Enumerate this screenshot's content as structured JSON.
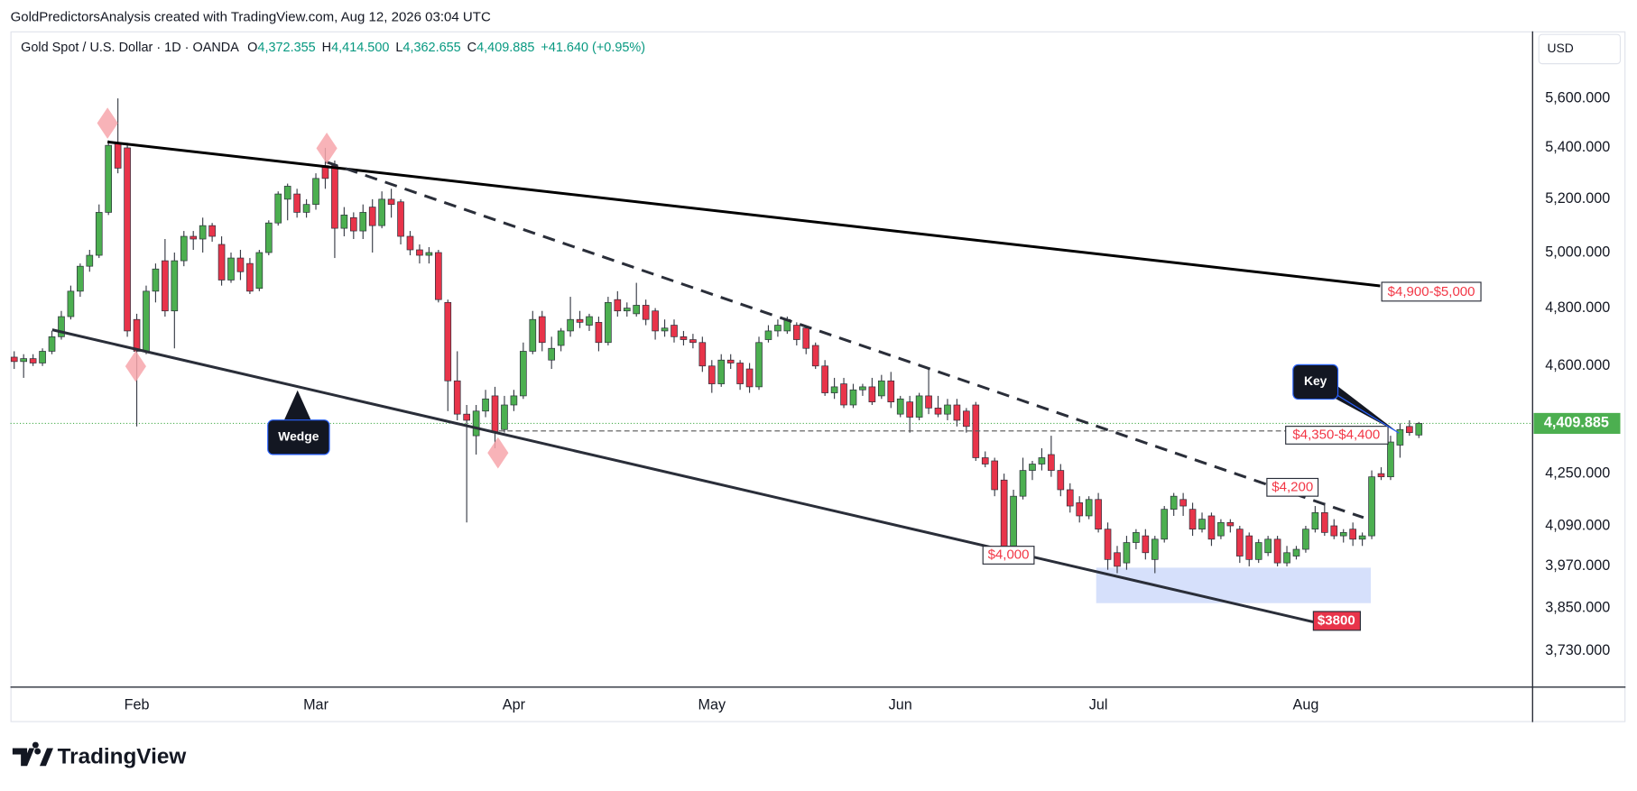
{
  "caption": "GoldPredictorsAnalysis created with TradingView.com, Aug 12, 2026 03:04 UTC",
  "brand": "TradingView",
  "chart_data": {
    "type": "candlestick",
    "title": "Gold Spot / U.S. Dollar · 1D · OANDA",
    "legend_values": [
      {
        "key": "O",
        "text": "4,372.355"
      },
      {
        "key": "H",
        "text": "4,414.500"
      },
      {
        "key": "L",
        "text": "4,362.655"
      },
      {
        "key": "C",
        "text": "4,409.885"
      }
    ],
    "change": "+41.640 (+0.95%)",
    "currency": "USD",
    "log_scale": true,
    "grid": false,
    "up_color": "#4caf50",
    "down_color": "#e8344a",
    "wick_color": "#3a3e48",
    "ylim": [
      3634,
      5883
    ],
    "yticks": [
      {
        "value": 5600,
        "label": "5,600.000"
      },
      {
        "value": 5400,
        "label": "5,400.000"
      },
      {
        "value": 5200,
        "label": "5,200.000"
      },
      {
        "value": 5000,
        "label": "5,000.000"
      },
      {
        "value": 4800,
        "label": "4,800.000"
      },
      {
        "value": 4600,
        "label": "4,600.000"
      },
      {
        "value": 4250,
        "label": "4,250.000"
      },
      {
        "value": 4090,
        "label": "4,090.000"
      },
      {
        "value": 3970,
        "label": "3,970.000"
      },
      {
        "value": 3850,
        "label": "3,850.000"
      },
      {
        "value": 3730,
        "label": "3,730.000"
      }
    ],
    "last_price": {
      "value": 4409.885,
      "label": "4,409.885",
      "color": "#4caf50"
    },
    "annotations": [
      "$4,900-$5,000",
      "$4,350-$4,400",
      "$4,200",
      "$4,000",
      "$3800",
      "Wedge",
      "Key"
    ],
    "categories": [
      null,
      null,
      null,
      null,
      null,
      null,
      null,
      null,
      null,
      null,
      null,
      null,
      null,
      "Feb",
      null,
      null,
      null,
      null,
      null,
      null,
      null,
      null,
      null,
      null,
      null,
      null,
      null,
      null,
      null,
      null,
      null,
      null,
      "Mar",
      null,
      null,
      null,
      null,
      null,
      null,
      null,
      null,
      null,
      null,
      null,
      null,
      null,
      null,
      null,
      null,
      null,
      null,
      null,
      null,
      "Apr",
      null,
      null,
      null,
      null,
      null,
      null,
      null,
      null,
      null,
      null,
      null,
      null,
      null,
      null,
      null,
      null,
      null,
      null,
      null,
      null,
      "May",
      null,
      null,
      null,
      null,
      null,
      null,
      null,
      null,
      null,
      null,
      null,
      null,
      null,
      null,
      null,
      null,
      null,
      null,
      null,
      "Jun",
      null,
      null,
      null,
      null,
      null,
      null,
      null,
      null,
      null,
      null,
      null,
      null,
      null,
      null,
      null,
      null,
      null,
      null,
      null,
      null,
      "Jul",
      null,
      null,
      null,
      null,
      null,
      null,
      null,
      null,
      null,
      null,
      null,
      null,
      null,
      null,
      null,
      null,
      null,
      null,
      null,
      null,
      null,
      "Aug",
      null,
      null,
      null,
      null,
      null,
      null
    ],
    "ohlc": [
      [
        4630,
        4650,
        4590,
        4615
      ],
      [
        4615,
        4640,
        4560,
        4625
      ],
      [
        4625,
        4640,
        4600,
        4610
      ],
      [
        4610,
        4660,
        4600,
        4650
      ],
      [
        4650,
        4720,
        4640,
        4700
      ],
      [
        4700,
        4790,
        4690,
        4770
      ],
      [
        4770,
        4880,
        4760,
        4860
      ],
      [
        4860,
        4960,
        4840,
        4950
      ],
      [
        4950,
        5010,
        4930,
        4990
      ],
      [
        4990,
        5180,
        4980,
        5150
      ],
      [
        5150,
        5430,
        5140,
        5410
      ],
      [
        5420,
        5600,
        5300,
        5320
      ],
      [
        5400,
        5420,
        4700,
        4720
      ],
      [
        4760,
        4780,
        4400,
        4650
      ],
      [
        4650,
        4880,
        4640,
        4860
      ],
      [
        4860,
        4960,
        4820,
        4940
      ],
      [
        4970,
        5050,
        4770,
        4790
      ],
      [
        4790,
        5000,
        4660,
        4970
      ],
      [
        4970,
        5080,
        4950,
        5060
      ],
      [
        5060,
        5080,
        5010,
        5050
      ],
      [
        5050,
        5130,
        5000,
        5100
      ],
      [
        5100,
        5110,
        5040,
        5060
      ],
      [
        5030,
        5060,
        4880,
        4900
      ],
      [
        4900,
        5000,
        4890,
        4980
      ],
      [
        4980,
        5010,
        4900,
        4930
      ],
      [
        4960,
        4980,
        4850,
        4860
      ],
      [
        4870,
        5010,
        4860,
        5000
      ],
      [
        5000,
        5120,
        4990,
        5110
      ],
      [
        5110,
        5230,
        5100,
        5220
      ],
      [
        5200,
        5260,
        5120,
        5250
      ],
      [
        5220,
        5240,
        5130,
        5150
      ],
      [
        5150,
        5200,
        5130,
        5180
      ],
      [
        5180,
        5300,
        5160,
        5280
      ],
      [
        5330,
        5400,
        5240,
        5280
      ],
      [
        5330,
        5350,
        4980,
        5090
      ],
      [
        5090,
        5170,
        5060,
        5140
      ],
      [
        5130,
        5150,
        5050,
        5080
      ],
      [
        5080,
        5180,
        5050,
        5150
      ],
      [
        5170,
        5200,
        5000,
        5100
      ],
      [
        5100,
        5230,
        5090,
        5200
      ],
      [
        5200,
        5240,
        5130,
        5180
      ],
      [
        5190,
        5200,
        5030,
        5060
      ],
      [
        5060,
        5080,
        4990,
        5010
      ],
      [
        5010,
        5030,
        4960,
        4990
      ],
      [
        4990,
        5020,
        4960,
        5000
      ],
      [
        5000,
        5010,
        4820,
        4830
      ],
      [
        4820,
        4830,
        4450,
        4550
      ],
      [
        4550,
        4650,
        4420,
        4440
      ],
      [
        4440,
        4470,
        4100,
        4420
      ],
      [
        4370,
        4470,
        4310,
        4450
      ],
      [
        4450,
        4520,
        4430,
        4490
      ],
      [
        4500,
        4530,
        4330,
        4380
      ],
      [
        4390,
        4500,
        4380,
        4470
      ],
      [
        4470,
        4520,
        4450,
        4500
      ],
      [
        4500,
        4680,
        4490,
        4650
      ],
      [
        4650,
        4790,
        4640,
        4760
      ],
      [
        4770,
        4790,
        4650,
        4680
      ],
      [
        4620,
        4700,
        4590,
        4660
      ],
      [
        4670,
        4730,
        4650,
        4720
      ],
      [
        4720,
        4840,
        4700,
        4760
      ],
      [
        4760,
        4790,
        4730,
        4750
      ],
      [
        4740,
        4780,
        4720,
        4770
      ],
      [
        4750,
        4770,
        4650,
        4680
      ],
      [
        4680,
        4840,
        4670,
        4820
      ],
      [
        4830,
        4860,
        4770,
        4790
      ],
      [
        4790,
        4820,
        4770,
        4800
      ],
      [
        4780,
        4890,
        4770,
        4810
      ],
      [
        4810,
        4830,
        4740,
        4760
      ],
      [
        4790,
        4800,
        4690,
        4720
      ],
      [
        4720,
        4760,
        4700,
        4730
      ],
      [
        4740,
        4760,
        4680,
        4700
      ],
      [
        4700,
        4720,
        4670,
        4690
      ],
      [
        4690,
        4710,
        4660,
        4680
      ],
      [
        4680,
        4700,
        4580,
        4600
      ],
      [
        4600,
        4620,
        4510,
        4540
      ],
      [
        4540,
        4640,
        4530,
        4620
      ],
      [
        4620,
        4640,
        4590,
        4610
      ],
      [
        4610,
        4620,
        4520,
        4540
      ],
      [
        4590,
        4610,
        4510,
        4530
      ],
      [
        4530,
        4700,
        4520,
        4680
      ],
      [
        4690,
        4740,
        4680,
        4720
      ],
      [
        4720,
        4760,
        4700,
        4740
      ],
      [
        4720,
        4770,
        4710,
        4760
      ],
      [
        4740,
        4750,
        4670,
        4690
      ],
      [
        4730,
        4740,
        4640,
        4660
      ],
      [
        4670,
        4680,
        4590,
        4600
      ],
      [
        4600,
        4620,
        4500,
        4510
      ],
      [
        4510,
        4560,
        4490,
        4530
      ],
      [
        4540,
        4560,
        4460,
        4470
      ],
      [
        4470,
        4540,
        4460,
        4520
      ],
      [
        4520,
        4540,
        4500,
        4530
      ],
      [
        4530,
        4560,
        4470,
        4480
      ],
      [
        4500,
        4570,
        4490,
        4550
      ],
      [
        4550,
        4580,
        4460,
        4480
      ],
      [
        4440,
        4500,
        4430,
        4490
      ],
      [
        4480,
        4500,
        4380,
        4430
      ],
      [
        4430,
        4510,
        4420,
        4500
      ],
      [
        4500,
        4590,
        4440,
        4460
      ],
      [
        4460,
        4500,
        4430,
        4440
      ],
      [
        4440,
        4490,
        4420,
        4470
      ],
      [
        4470,
        4490,
        4400,
        4420
      ],
      [
        4450,
        4460,
        4380,
        4400
      ],
      [
        4470,
        4480,
        4290,
        4300
      ],
      [
        4300,
        4320,
        4270,
        4280
      ],
      [
        4290,
        4300,
        4180,
        4200
      ],
      [
        4230,
        4250,
        3990,
        4020
      ],
      [
        4030,
        4200,
        4000,
        4180
      ],
      [
        4180,
        4300,
        4170,
        4260
      ],
      [
        4260,
        4290,
        4230,
        4280
      ],
      [
        4280,
        4330,
        4260,
        4300
      ],
      [
        4310,
        4370,
        4240,
        4260
      ],
      [
        4260,
        4280,
        4180,
        4200
      ],
      [
        4200,
        4220,
        4130,
        4150
      ],
      [
        4160,
        4180,
        4100,
        4120
      ],
      [
        4120,
        4180,
        4110,
        4170
      ],
      [
        4170,
        4190,
        4070,
        4080
      ],
      [
        4080,
        4100,
        3960,
        3990
      ],
      [
        4010,
        4030,
        3950,
        3970
      ],
      [
        3980,
        4060,
        3960,
        4040
      ],
      [
        4040,
        4080,
        4020,
        4070
      ],
      [
        4060,
        4080,
        3990,
        4010
      ],
      [
        3990,
        4060,
        3950,
        4050
      ],
      [
        4050,
        4150,
        4040,
        4140
      ],
      [
        4140,
        4190,
        4120,
        4180
      ],
      [
        4170,
        4190,
        4120,
        4150
      ],
      [
        4140,
        4160,
        4060,
        4080
      ],
      [
        4080,
        4130,
        4070,
        4110
      ],
      [
        4120,
        4130,
        4030,
        4050
      ],
      [
        4060,
        4110,
        4050,
        4100
      ],
      [
        4100,
        4110,
        4070,
        4090
      ],
      [
        4080,
        4090,
        3980,
        4000
      ],
      [
        4060,
        4070,
        3970,
        3990
      ],
      [
        3990,
        4050,
        3980,
        4040
      ],
      [
        4010,
        4060,
        4000,
        4050
      ],
      [
        4050,
        4060,
        3970,
        3980
      ],
      [
        3980,
        4030,
        3970,
        4010
      ],
      [
        4000,
        4030,
        3990,
        4020
      ],
      [
        4020,
        4090,
        4010,
        4080
      ],
      [
        4080,
        4150,
        4070,
        4130
      ],
      [
        4130,
        4160,
        4060,
        4070
      ],
      [
        4090,
        4110,
        4050,
        4060
      ],
      [
        4060,
        4080,
        4040,
        4070
      ],
      [
        4080,
        4100,
        4030,
        4050
      ],
      [
        4050,
        4070,
        4030,
        4060
      ],
      [
        4060,
        4260,
        4050,
        4240
      ],
      [
        4250,
        4270,
        4230,
        4240
      ],
      [
        4240,
        4370,
        4230,
        4350
      ],
      [
        4340,
        4410,
        4300,
        4390
      ],
      [
        4400,
        4420,
        4370,
        4380
      ],
      [
        4372.355,
        4414.5,
        4362.655,
        4409.885
      ]
    ]
  }
}
